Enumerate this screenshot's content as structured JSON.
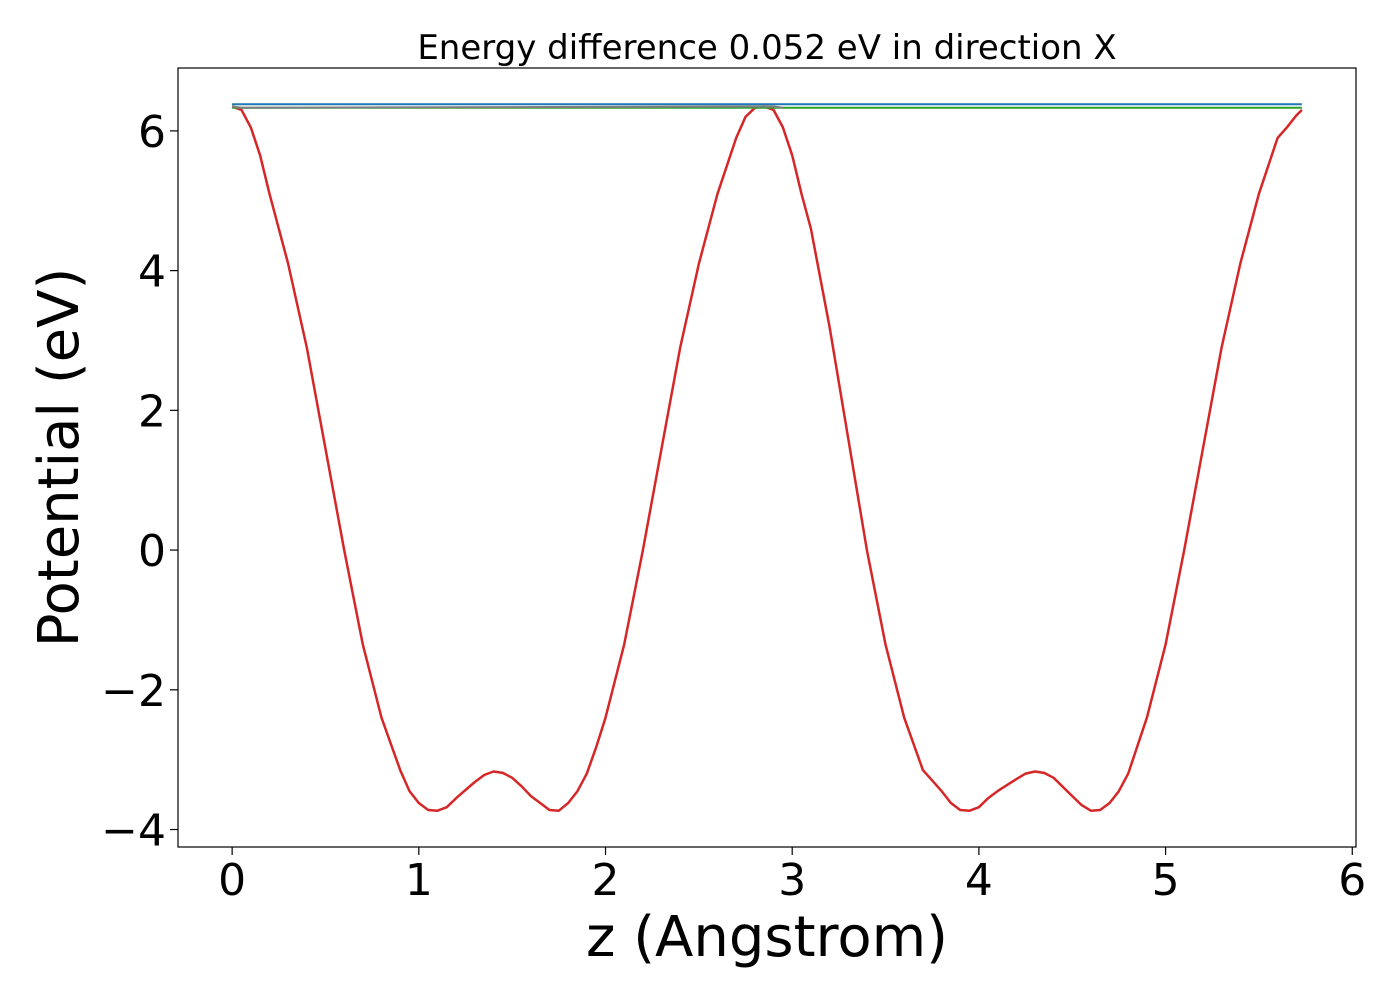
{
  "chart_data": {
    "type": "line",
    "title": "Energy difference 0.052 eV in direction X",
    "xlabel": "z (Angstrom)",
    "ylabel": "Potential (eV)",
    "xlim": [
      -0.29,
      6.02
    ],
    "ylim": [
      -4.25,
      6.9
    ],
    "xticks": [
      0,
      1,
      2,
      3,
      4,
      5,
      6
    ],
    "yticks": [
      -4,
      -2,
      0,
      2,
      4,
      6
    ],
    "xtick_labels": [
      "0",
      "1",
      "2",
      "3",
      "4",
      "5",
      "6"
    ],
    "ytick_labels": [
      "−4",
      "−2",
      "0",
      "2",
      "4",
      "6"
    ],
    "grid": false,
    "series": [
      {
        "color": "#d62728",
        "x": [
          0.0,
          0.05,
          0.1,
          0.15,
          0.2,
          0.3,
          0.4,
          0.5,
          0.6,
          0.7,
          0.8,
          0.9,
          0.95,
          1.0,
          1.05,
          1.1,
          1.15,
          1.2,
          1.3,
          1.35,
          1.4,
          1.45,
          1.5,
          1.55,
          1.6,
          1.7,
          1.75,
          1.8,
          1.85,
          1.9,
          1.95,
          2.0,
          2.1,
          2.2,
          2.3,
          2.4,
          2.5,
          2.6,
          2.7,
          2.75,
          2.8,
          2.85,
          2.9,
          2.95,
          3.0,
          3.05,
          3.1,
          3.2,
          3.3,
          3.4,
          3.5,
          3.6,
          3.7,
          3.8,
          3.85,
          3.9,
          3.95,
          4.0,
          4.05,
          4.1,
          4.2,
          4.25,
          4.3,
          4.35,
          4.4,
          4.5,
          4.55,
          4.6,
          4.65,
          4.7,
          4.75,
          4.8,
          4.9,
          5.0,
          5.1,
          5.2,
          5.3,
          5.4,
          5.5,
          5.6,
          5.65,
          5.7,
          5.73
        ],
        "y": [
          6.35,
          6.3,
          6.05,
          5.65,
          5.1,
          4.1,
          2.9,
          1.45,
          0.0,
          -1.35,
          -2.4,
          -3.15,
          -3.45,
          -3.62,
          -3.72,
          -3.73,
          -3.68,
          -3.55,
          -3.32,
          -3.22,
          -3.17,
          -3.19,
          -3.26,
          -3.38,
          -3.52,
          -3.72,
          -3.73,
          -3.62,
          -3.45,
          -3.2,
          -2.82,
          -2.4,
          -1.35,
          0.0,
          1.45,
          2.9,
          4.1,
          5.1,
          5.9,
          6.2,
          6.33,
          6.35,
          6.3,
          6.05,
          5.65,
          5.1,
          4.6,
          3.2,
          1.6,
          0.0,
          -1.35,
          -2.4,
          -3.15,
          -3.45,
          -3.62,
          -3.72,
          -3.73,
          -3.68,
          -3.55,
          -3.45,
          -3.28,
          -3.2,
          -3.17,
          -3.19,
          -3.26,
          -3.52,
          -3.65,
          -3.73,
          -3.72,
          -3.62,
          -3.45,
          -3.2,
          -2.4,
          -1.35,
          0.0,
          1.45,
          2.9,
          4.1,
          5.1,
          5.9,
          6.05,
          6.22,
          6.3
        ]
      },
      {
        "color": "#1f77b4",
        "x": [
          0.0,
          5.73
        ],
        "y": [
          6.38,
          6.38
        ]
      },
      {
        "color": "#2ca02c",
        "x": [
          0.0,
          5.73
        ],
        "y": [
          6.33,
          6.33
        ]
      },
      {
        "color": "#7f7f7f",
        "x": [
          0.0,
          0.05,
          2.85,
          2.9,
          2.95
        ],
        "y": [
          6.35,
          6.33,
          6.35,
          6.35,
          6.33
        ]
      }
    ]
  }
}
